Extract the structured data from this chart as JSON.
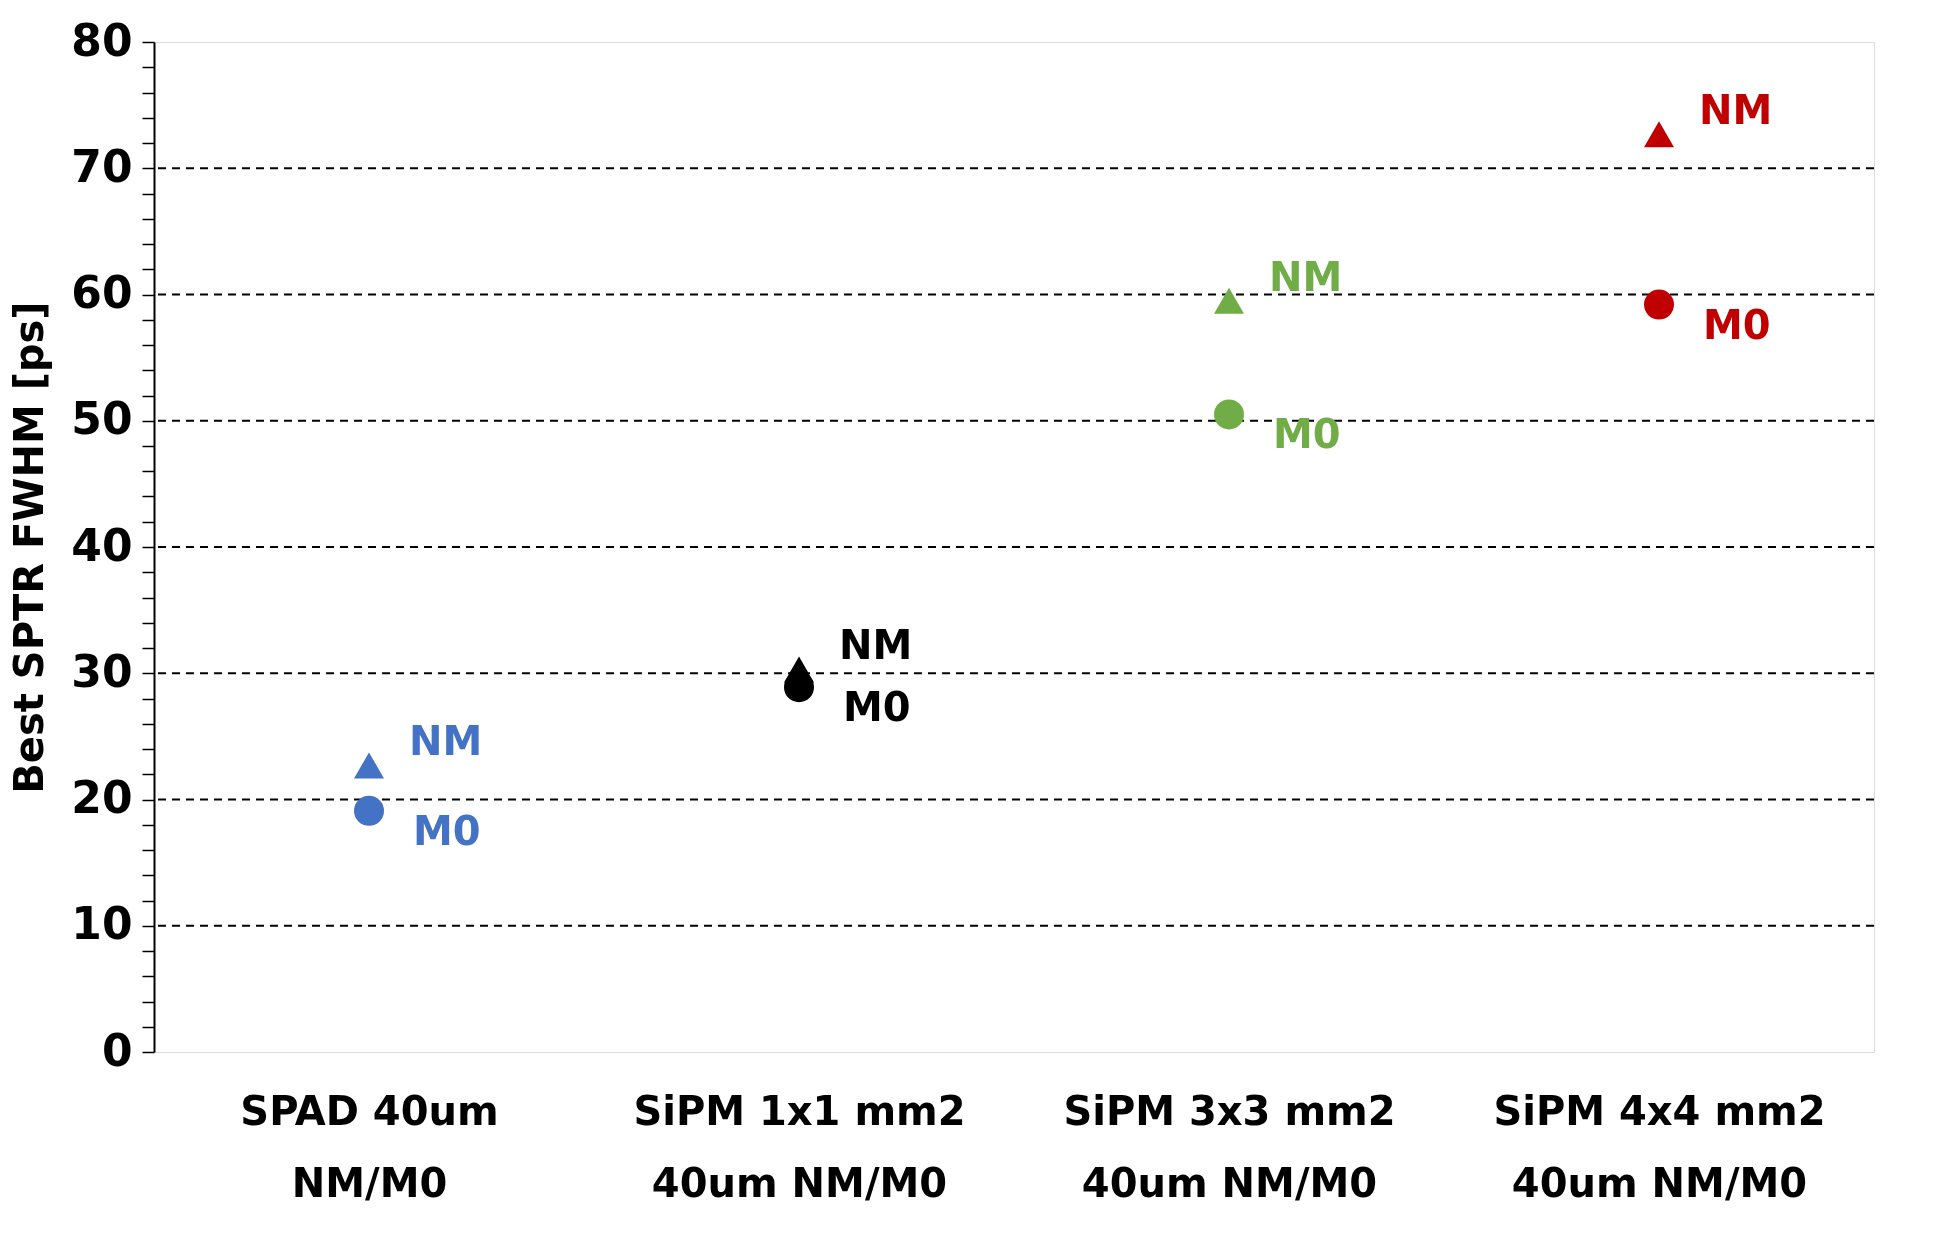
{
  "chart_data": {
    "type": "scatter",
    "ylabel": "Best SPTR FWHM [ps]",
    "categories": [
      "SPAD 40um\nNM/M0",
      "SiPM 1x1 mm2\n40um NM/M0",
      "SiPM 3x3 mm2\n40um NM/M0",
      "SiPM 4x4 mm2\n40um NM/M0"
    ],
    "series": [
      {
        "name": "NM",
        "marker": "triangle",
        "colors": [
          "#4472c4",
          "#000000",
          "#70ad47",
          "#c00000"
        ],
        "values": [
          22.7,
          30.3,
          59.5,
          72.7
        ]
      },
      {
        "name": "M0",
        "marker": "circle",
        "colors": [
          "#4472c4",
          "#000000",
          "#70ad47",
          "#c00000"
        ],
        "values": [
          19.1,
          28.9,
          50.5,
          59.2
        ]
      }
    ],
    "ylim": [
      0,
      80
    ],
    "yticks": [
      0,
      {
        "value": 2,
        "label": null
      },
      {
        "value": 4,
        "label": null
      },
      {
        "value": 6,
        "label": null
      },
      {
        "value": 8,
        "label": null
      },
      10,
      {
        "value": 12,
        "label": null
      },
      {
        "value": 14,
        "label": null
      },
      {
        "value": 16,
        "label": null
      },
      {
        "value": 18,
        "label": null
      },
      20,
      {
        "value": 22,
        "label": null
      },
      {
        "value": 24,
        "label": null
      },
      {
        "value": 26,
        "label": null
      },
      {
        "value": 28,
        "label": null
      },
      30,
      {
        "value": 32,
        "label": null
      },
      {
        "value": 34,
        "label": null
      },
      {
        "value": 36,
        "label": null
      },
      {
        "value": 38,
        "label": null
      },
      40,
      {
        "value": 42,
        "label": null
      },
      {
        "value": 44,
        "label": null
      },
      {
        "value": 46,
        "label": null
      },
      {
        "value": 48,
        "label": null
      },
      50,
      {
        "value": 52,
        "label": null
      },
      {
        "value": 54,
        "label": null
      },
      {
        "value": 56,
        "label": null
      },
      {
        "value": 58,
        "label": null
      },
      60,
      {
        "value": 62,
        "label": null
      },
      {
        "value": 64,
        "label": null
      },
      {
        "value": 66,
        "label": null
      },
      {
        "value": 68,
        "label": null
      },
      70,
      {
        "value": 72,
        "label": null
      },
      {
        "value": 74,
        "label": null
      },
      {
        "value": 76,
        "label": null
      },
      {
        "value": 78,
        "label": null
      },
      80
    ],
    "grid": "y",
    "line_style": "dashed",
    "legend": false
  }
}
